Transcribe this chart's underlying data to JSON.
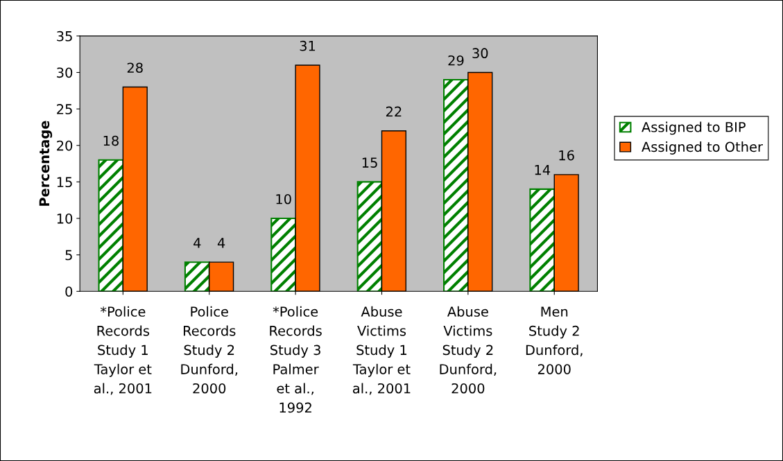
{
  "chart_data": {
    "type": "bar",
    "ylabel": "Percentage",
    "categories": [
      "*Police\nRecords\nStudy 1\nTaylor et\nal., 2001",
      "Police\nRecords\nStudy 2\nDunford,\n2000",
      "*Police\nRecords\nStudy 3\nPalmer\net al.,\n1992",
      "Abuse\nVictims\nStudy 1\nTaylor et\nal., 2001",
      "Abuse\nVictims\nStudy 2\nDunford,\n2000",
      "Men\nStudy 2\nDunford,\n2000"
    ],
    "series": [
      {
        "name": "Assigned to BIP",
        "color": "#008000",
        "values": [
          18,
          4,
          10,
          15,
          29,
          14
        ]
      },
      {
        "name": "Assigned to Other",
        "color": "#ff6600",
        "values": [
          28,
          4,
          31,
          22,
          30,
          16
        ]
      }
    ],
    "ylim": [
      0,
      35
    ],
    "yticks": [
      0,
      5,
      10,
      15,
      20,
      25,
      30,
      35
    ],
    "data_labels": true,
    "legend": "right",
    "grid": false
  }
}
